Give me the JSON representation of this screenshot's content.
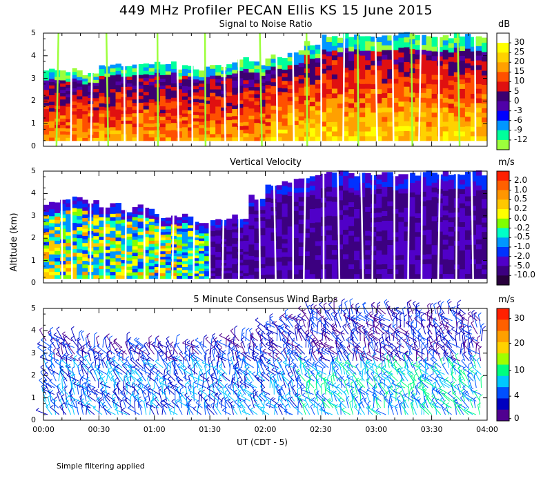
{
  "title": "449 MHz Profiler PECAN Ellis KS 15 June 2015",
  "footer_note": "Simple filtering applied",
  "y_axis_label": "Altitude (km)",
  "x_axis_label": "UT  (CDT - 5)",
  "x_tick_labels": [
    "00:00",
    "00:30",
    "01:00",
    "01:30",
    "02:00",
    "02:30",
    "03:00",
    "03:30",
    "04:00"
  ],
  "y_tick_labels": [
    "0",
    "1",
    "2",
    "3",
    "4",
    "5"
  ],
  "chart_data": [
    {
      "type": "heatmap",
      "title": "Signal to Noise Ratio",
      "units": "dB",
      "xlim": [
        0,
        240
      ],
      "ylim": [
        0,
        5
      ],
      "xlabel": "UT (CDT - 5)",
      "ylabel": "Altitude (km)",
      "colorbar_labels": [
        "30",
        "25",
        "20",
        "15",
        "10",
        "5",
        "0",
        "-3",
        "-6",
        "-9",
        "-12"
      ],
      "colors": [
        "#ffffff",
        "#ffff00",
        "#ffd200",
        "#ffa000",
        "#ff5000",
        "#e01010",
        "#3c0070",
        "#5000a8",
        "#0000ff",
        "#0096ff",
        "#00ff9c",
        "#9cff3c"
      ],
      "data_top_km": [
        3.3,
        3.4,
        3.2,
        3.5,
        3.6,
        3.6,
        3.7,
        3.5,
        3.4,
        3.6,
        3.8,
        3.7,
        4.0,
        4.2,
        4.6,
        4.8,
        4.9,
        4.9,
        4.8,
        4.9,
        4.9,
        4.9,
        4.9,
        4.9
      ]
    },
    {
      "type": "heatmap",
      "title": "Vertical Velocity",
      "units": "m/s",
      "xlim": [
        0,
        240
      ],
      "ylim": [
        0,
        5
      ],
      "xlabel": "UT (CDT - 5)",
      "ylabel": "Altitude (km)",
      "colorbar_labels": [
        "2.0",
        "1.0",
        "0.5",
        "0.2",
        "0.0",
        "-0.2",
        "-0.5",
        "-1.0",
        "-2.0",
        "-5.0",
        "-10.0"
      ],
      "colors": [
        "#ff2000",
        "#ff6000",
        "#ff9600",
        "#ffc800",
        "#ffff00",
        "#80ff00",
        "#00ffc8",
        "#0096ff",
        "#0032ff",
        "#5000c8",
        "#3c0080",
        "#28003c"
      ],
      "data_top_km": [
        3.6,
        3.8,
        3.7,
        3.5,
        3.3,
        3.4,
        3.0,
        3.0,
        2.8,
        2.8,
        3.0,
        3.8,
        4.4,
        4.6,
        4.8,
        4.9,
        4.9,
        4.9,
        4.9,
        4.9,
        4.9,
        4.9,
        4.9,
        4.9
      ]
    },
    {
      "type": "scatter",
      "title": "5 Minute Consensus Wind Barbs",
      "units": "m/s",
      "xlim": [
        0,
        240
      ],
      "ylim": [
        0,
        5
      ],
      "xlabel": "UT (CDT - 5)",
      "ylabel": "Altitude (km)",
      "colorbar_labels": [
        "30",
        "20",
        "10",
        "4",
        "0"
      ],
      "colors": [
        "#ff2000",
        "#ff6000",
        "#ffa000",
        "#ffd200",
        "#a0ff00",
        "#00ff80",
        "#00c8ff",
        "#0050ff",
        "#0000c0",
        "#500090"
      ],
      "profile_top_km": [
        3.6,
        3.7,
        3.4,
        3.5,
        3.3,
        3.4,
        3.4,
        3.2,
        3.3,
        3.4,
        3.6,
        3.8,
        4.4,
        4.7,
        4.8,
        4.9,
        4.9,
        4.9,
        4.9,
        4.9,
        4.9,
        4.9,
        4.8,
        4.6
      ]
    }
  ]
}
